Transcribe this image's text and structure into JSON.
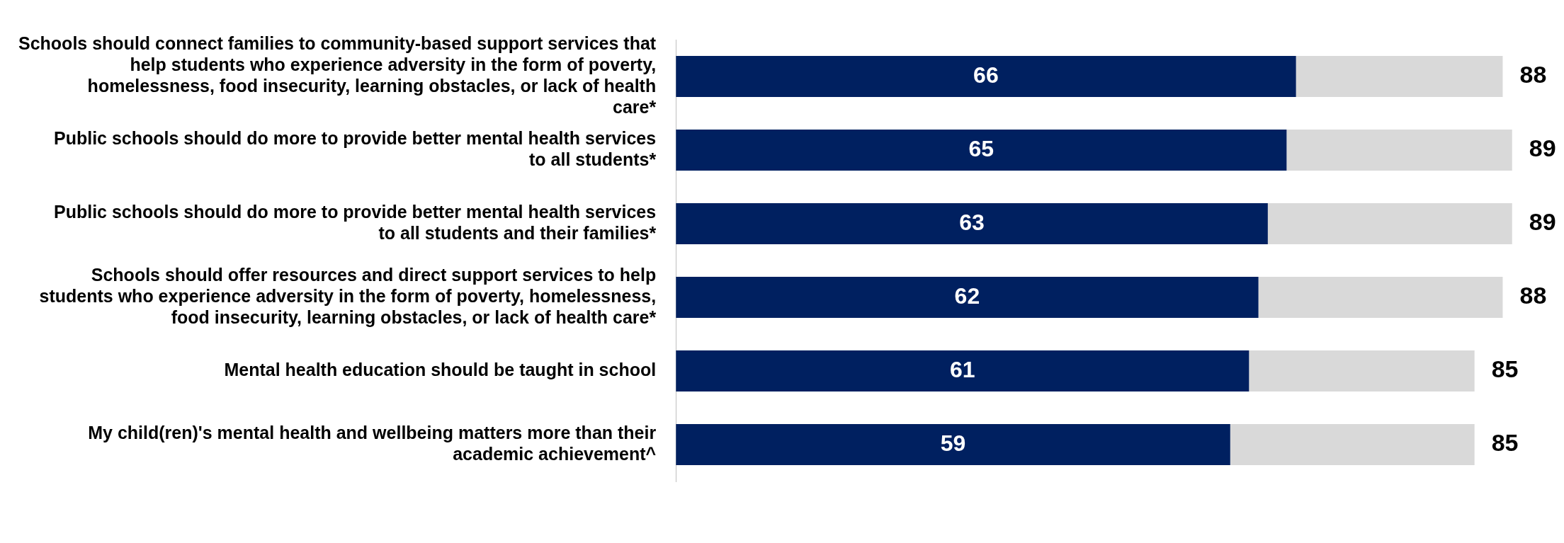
{
  "chart_data": {
    "type": "bar",
    "orientation": "horizontal",
    "stacked": true,
    "legend": false,
    "categories": [
      "Schools should connect families to community-based support services that help students who experience adversity in the form of poverty, homelessness, food insecurity, learning obstacles, or lack of health care*",
      "Public schools should do more to provide better mental health services to all students*",
      "Public schools should do more to provide better mental health services to all students and their families*",
      "Schools should offer resources and direct support services to help students who experience adversity in the form of poverty, homelessness, food insecurity, learning obstacles, or lack of health care*",
      "Mental health education should be taught in school",
      "My child(ren)'s mental health and wellbeing matters more than their academic achievement^"
    ],
    "tick_labels": "y",
    "series": [
      {
        "color": "#002060",
        "values": [
          66,
          65,
          63,
          62,
          61,
          59
        ],
        "value_labels": [
          "66",
          "65",
          "63",
          "62",
          "61",
          "59"
        ]
      },
      {
        "color": "#d9d9d9",
        "values": [
          22,
          24,
          26,
          26,
          24,
          26
        ]
      }
    ],
    "totals": [
      "88",
      "89",
      "89",
      "88",
      "85",
      "85"
    ]
  }
}
